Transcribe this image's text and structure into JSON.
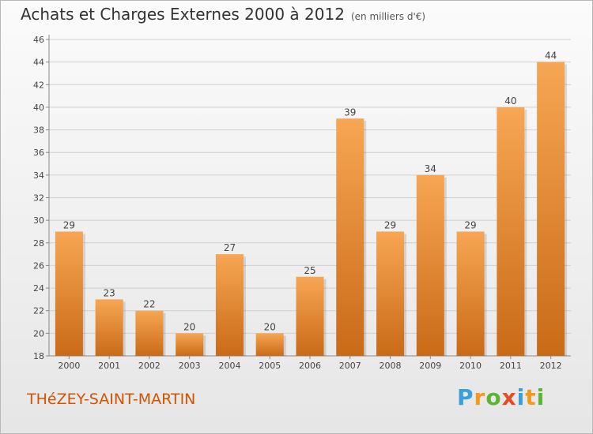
{
  "chart_data": {
    "type": "bar",
    "title": "Achats et Charges Externes 2000 à 2012",
    "subtitle": "(en milliers d'€)",
    "categories": [
      "2000",
      "2001",
      "2002",
      "2003",
      "2004",
      "2005",
      "2006",
      "2007",
      "2008",
      "2009",
      "2010",
      "2011",
      "2012"
    ],
    "values": [
      29,
      23,
      22,
      20,
      27,
      20,
      25,
      39,
      29,
      34,
      29,
      40,
      44
    ],
    "ylim": [
      18,
      46
    ],
    "yticks": [
      18,
      20,
      22,
      24,
      26,
      28,
      30,
      32,
      34,
      36,
      38,
      40,
      42,
      44,
      46
    ],
    "grid": true,
    "bar_color": "#f0923a",
    "bar_color_light": "#f7a653",
    "bar_color_dark": "#c96a17",
    "grid_color": "#d0d0d0"
  },
  "place_name": "THéZEY-SAINT-MARTIN",
  "place_color": "#d35400",
  "logo": {
    "letters": [
      "P",
      "r",
      "o",
      "x",
      "i",
      "t",
      "i"
    ],
    "colors": [
      "#3aa0d8",
      "#f29a1c",
      "#5cb531",
      "#e64b2a",
      "#3aa0d8",
      "#f29a1c",
      "#5cb531"
    ]
  }
}
